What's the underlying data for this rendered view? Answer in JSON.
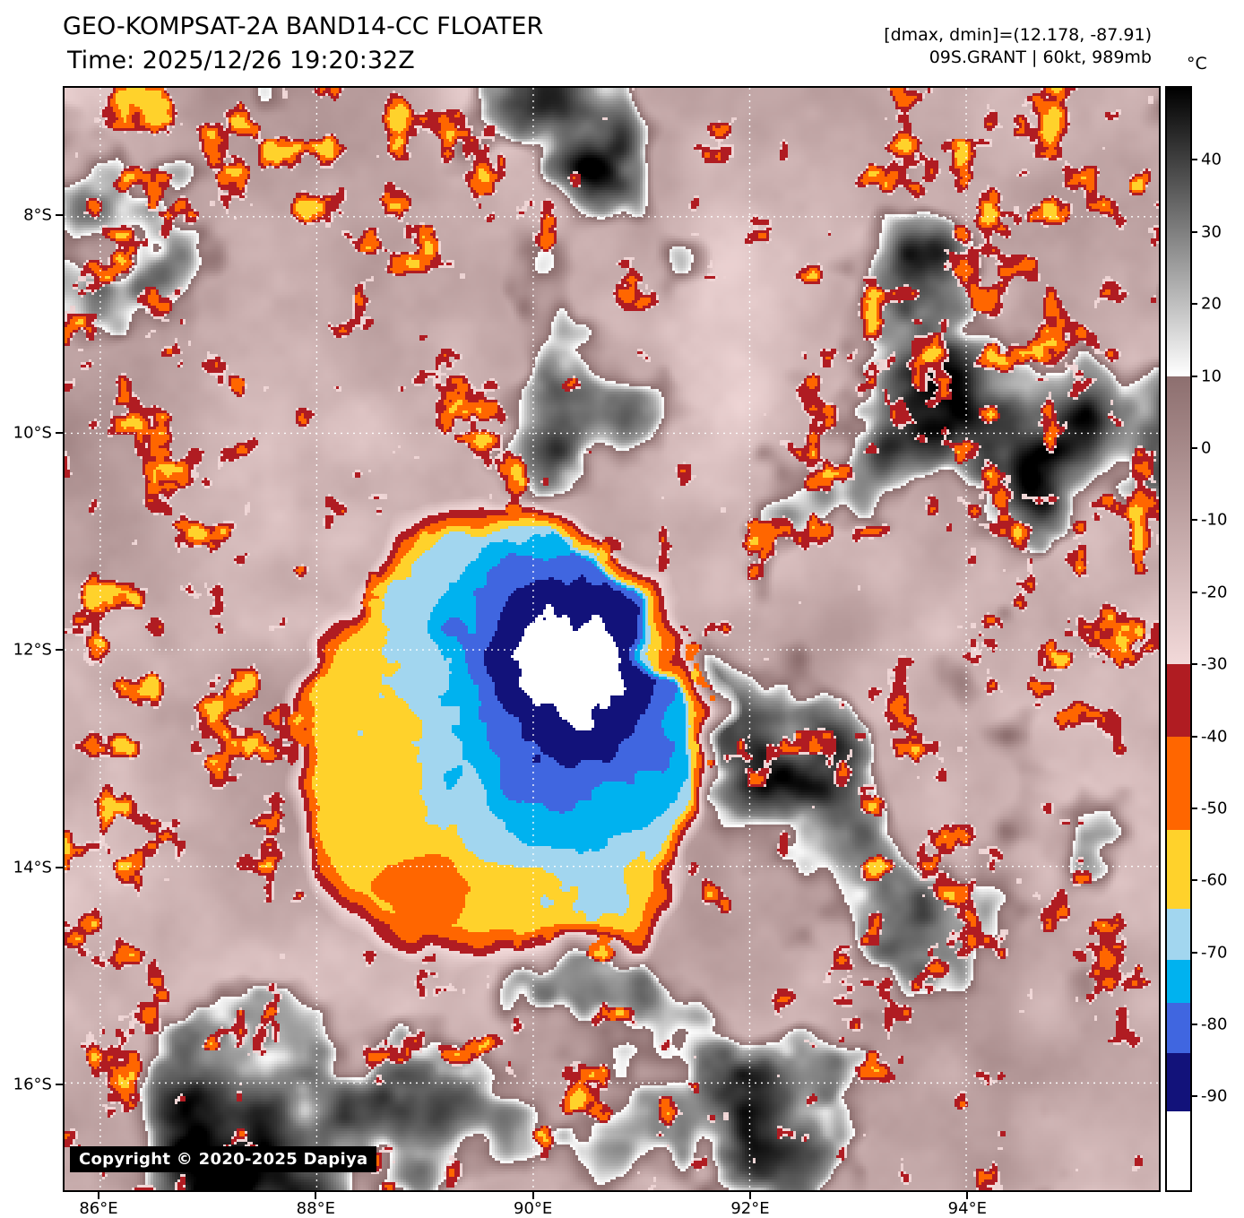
{
  "header": {
    "title": "GEO-KOMPSAT-2A BAND14-CC FLOATER",
    "time_line": "Time: 2025/12/26 19:20:32Z",
    "dmax_dmin": "[dmax, dmin]=(12.178, -87.91)",
    "storm_info": "09S.GRANT | 60kt, 989mb"
  },
  "colorbar": {
    "unit": "°C",
    "top_value": 50,
    "bottom_value": -103,
    "segments": [
      {
        "from": 50,
        "to": 10,
        "colors": [
          "#000000",
          "#ffffff"
        ]
      },
      {
        "from": 10,
        "to": -30,
        "colors": [
          "#8d6f6f",
          "#f2d9d9"
        ]
      },
      {
        "from": -30,
        "to": -40,
        "colors": [
          "#b01c22"
        ]
      },
      {
        "from": -40,
        "to": -53,
        "colors": [
          "#ff6600"
        ]
      },
      {
        "from": -53,
        "to": -64,
        "colors": [
          "#ffd22b"
        ]
      },
      {
        "from": -64,
        "to": -71,
        "colors": [
          "#a2d6ef"
        ]
      },
      {
        "from": -71,
        "to": -77,
        "colors": [
          "#00b2ef"
        ]
      },
      {
        "from": -77,
        "to": -84,
        "colors": [
          "#4066e0"
        ]
      },
      {
        "from": -84,
        "to": -92,
        "colors": [
          "#12127a"
        ]
      },
      {
        "from": -92,
        "to": -103,
        "colors": [
          "#ffffff"
        ]
      }
    ],
    "ticks": [
      {
        "value": 40,
        "label": "40"
      },
      {
        "value": 30,
        "label": "30"
      },
      {
        "value": 20,
        "label": "20"
      },
      {
        "value": 10,
        "label": "10"
      },
      {
        "value": 0,
        "label": "0"
      },
      {
        "value": -10,
        "label": "-10"
      },
      {
        "value": -20,
        "label": "-20"
      },
      {
        "value": -30,
        "label": "-30"
      },
      {
        "value": -40,
        "label": "-40"
      },
      {
        "value": -50,
        "label": "-50"
      },
      {
        "value": -60,
        "label": "-60"
      },
      {
        "value": -70,
        "label": "-70"
      },
      {
        "value": -80,
        "label": "-80"
      },
      {
        "value": -90,
        "label": "-90"
      }
    ]
  },
  "axes": {
    "x_ticks": [
      {
        "value": 86,
        "label": "86°E"
      },
      {
        "value": 88,
        "label": "88°E"
      },
      {
        "value": 90,
        "label": "90°E"
      },
      {
        "value": 92,
        "label": "92°E"
      },
      {
        "value": 94,
        "label": "94°E"
      }
    ],
    "y_ticks": [
      {
        "value": 8,
        "label": "8°S"
      },
      {
        "value": 10,
        "label": "10°S"
      },
      {
        "value": 12,
        "label": "12°S"
      },
      {
        "value": 14,
        "label": "14°S"
      },
      {
        "value": 16,
        "label": "16°S"
      }
    ]
  },
  "footer": {
    "copyright": "Copyright © 2020-2025 Dapiya"
  }
}
